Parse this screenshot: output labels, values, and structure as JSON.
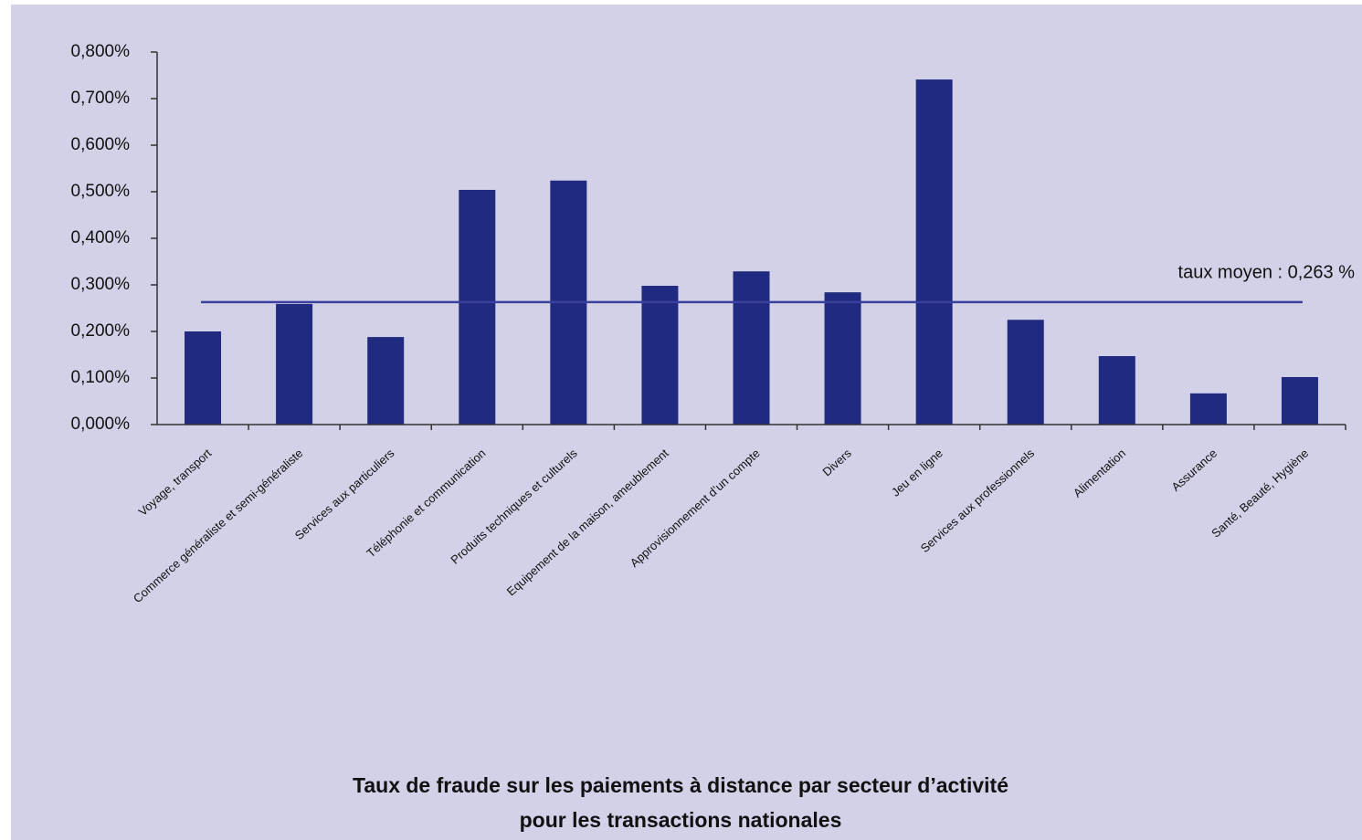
{
  "chart_data": {
    "type": "bar",
    "title": [
      "Taux de fraude sur les paiements à distance par secteur d’activité",
      "pour les transactions nationales"
    ],
    "categories": [
      "Voyage, transport",
      "Commerce généraliste et semi-généraliste",
      "Services aux particuliers",
      "Téléphonie et communication",
      "Produits techniques et culturels",
      "Equipement de la maison, ameublement",
      "Approvisionnement d’un compte",
      "Divers",
      "Jeu en ligne",
      "Services aux professionnels",
      "Alimentation",
      "Assurance",
      "Santé, Beauté, Hygiène"
    ],
    "values": [
      0.2,
      0.259,
      0.188,
      0.504,
      0.524,
      0.298,
      0.329,
      0.284,
      0.741,
      0.225,
      0.147,
      0.067,
      0.102
    ],
    "color": "#1f2a80",
    "mean": 0.263,
    "mean_label": "taux moyen : 0,263 %",
    "ylim": [
      0,
      0.8
    ],
    "yticks": [
      {
        "value": 0,
        "label": "0,000%"
      },
      {
        "value": 0.1,
        "label": "0,100%"
      },
      {
        "value": 0.2,
        "label": "0,200%"
      },
      {
        "value": 0.3,
        "label": "0,300%"
      },
      {
        "value": 0.4,
        "label": "0,400%"
      },
      {
        "value": 0.5,
        "label": "0,500%"
      },
      {
        "value": 0.6,
        "label": "0,600%"
      },
      {
        "value": 0.7,
        "label": "0,700%"
      },
      {
        "value": 0.8,
        "label": "0,800%"
      }
    ],
    "grid": false
  }
}
